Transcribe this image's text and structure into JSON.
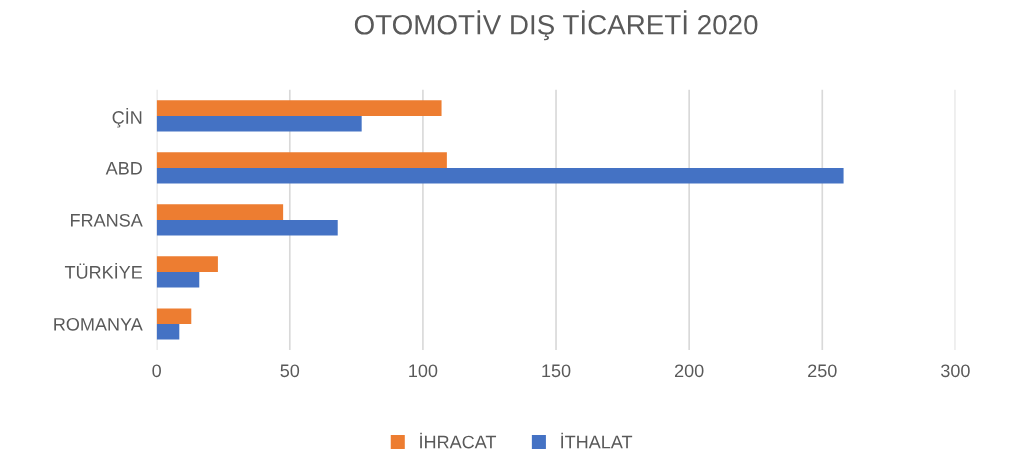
{
  "chart_data": {
    "type": "bar",
    "orientation": "horizontal",
    "title": "OTOMOTİV DIŞ TİCARETİ 2020",
    "categories": [
      "ÇİN",
      "ABD",
      "FRANSA",
      "TÜRKİYE",
      "ROMANYA"
    ],
    "series": [
      {
        "name": "İHRACAT",
        "color": "#ed7d31",
        "values": [
          107,
          109,
          47.5,
          23,
          13
        ]
      },
      {
        "name": "İTHALAT",
        "color": "#4472c4",
        "values": [
          77,
          258,
          68,
          16,
          8.5
        ]
      }
    ],
    "xlim": [
      0,
      300
    ],
    "xticks": [
      0,
      50,
      100,
      150,
      200,
      250,
      300
    ],
    "grid": "x",
    "legend": "bottom"
  }
}
